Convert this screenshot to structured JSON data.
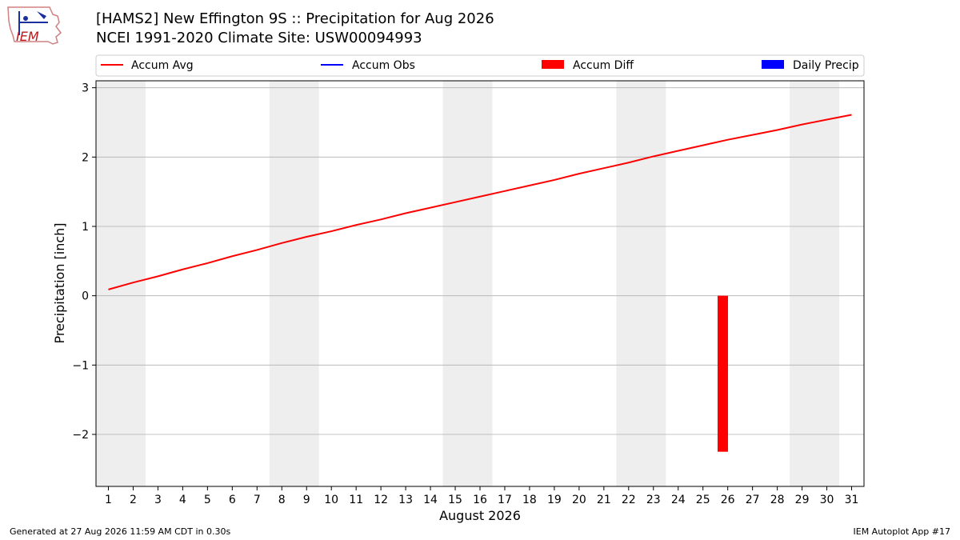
{
  "header": {
    "title_line1": "[HAMS2] New Effington 9S :: Precipitation for Aug 2026",
    "title_line2": "NCEI 1991-2020 Climate Site: USW00094993"
  },
  "logo": {
    "text": "IEM"
  },
  "footer": {
    "generated": "Generated at 27 Aug 2026 11:59 AM CDT in 0.30s",
    "app": "IEM Autoplot App #17"
  },
  "colors": {
    "accum_avg": "#ff0000",
    "accum_obs": "#0000ff",
    "accum_diff": "#ff0000",
    "daily_precip": "#0000ff",
    "weekend_shade": "#eeeeee",
    "grid": "#b0b0b0"
  },
  "chart_data": {
    "type": "line",
    "xlabel": "August 2026",
    "ylabel": "Precipitation [inch]",
    "xlim": [
      0.5,
      31.5
    ],
    "ylim": [
      -2.75,
      3.1
    ],
    "x_ticks": [
      1,
      2,
      3,
      4,
      5,
      6,
      7,
      8,
      9,
      10,
      11,
      12,
      13,
      14,
      15,
      16,
      17,
      18,
      19,
      20,
      21,
      22,
      23,
      24,
      25,
      26,
      27,
      28,
      29,
      30,
      31
    ],
    "y_ticks": [
      -2,
      -1,
      0,
      1,
      2,
      3
    ],
    "y_tick_labels": [
      "−2",
      "−1",
      "0",
      "1",
      "2",
      "3"
    ],
    "grid": "y",
    "legend_position": "top",
    "legend": [
      "Accum Avg",
      "Accum Obs",
      "Accum Diff",
      "Daily Precip"
    ],
    "shaded_day_ranges": [
      [
        1,
        2
      ],
      [
        8,
        9
      ],
      [
        15,
        16
      ],
      [
        22,
        23
      ],
      [
        29,
        30
      ]
    ],
    "series": [
      {
        "name": "Accum Avg",
        "type": "line",
        "x": [
          1,
          2,
          3,
          4,
          5,
          6,
          7,
          8,
          9,
          10,
          11,
          12,
          13,
          14,
          15,
          16,
          17,
          18,
          19,
          20,
          21,
          22,
          23,
          24,
          25,
          26,
          27,
          28,
          29,
          30,
          31
        ],
        "values": [
          0.09,
          0.19,
          0.28,
          0.38,
          0.47,
          0.57,
          0.66,
          0.76,
          0.85,
          0.93,
          1.02,
          1.1,
          1.19,
          1.27,
          1.35,
          1.43,
          1.51,
          1.59,
          1.67,
          1.76,
          1.84,
          1.92,
          2.01,
          2.09,
          2.17,
          2.25,
          2.32,
          2.39,
          2.47,
          2.54,
          2.61
        ]
      },
      {
        "name": "Accum Obs",
        "type": "line",
        "x": [],
        "values": []
      },
      {
        "name": "Accum Diff",
        "type": "bar",
        "x": [
          25.8
        ],
        "values": [
          -2.25
        ]
      },
      {
        "name": "Daily Precip",
        "type": "bar",
        "x": [],
        "values": []
      }
    ]
  }
}
